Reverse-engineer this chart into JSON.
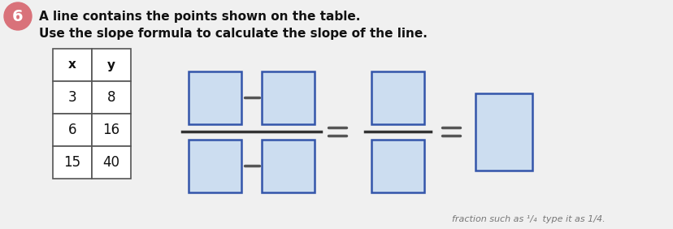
{
  "title_line1": "A line contains the points shown on the table.",
  "title_line2": "Use the slope formula to calculate the slope of the line.",
  "table_headers": [
    "x",
    "y"
  ],
  "table_rows": [
    [
      3,
      8
    ],
    [
      6,
      16
    ],
    [
      15,
      40
    ]
  ],
  "circle_number": "6",
  "circle_color": "#d9727a",
  "circle_text_color": "#ffffff",
  "table_border_color": "#555555",
  "box_fill_color": "#ccddf0",
  "box_border_color": "#3355aa",
  "background_color": "#f0f0f0",
  "text_color": "#111111",
  "minus_color": "#555555",
  "equals_color": "#555555",
  "bottom_text": "fraction such as",
  "fraction_hint": "type it as 1/4."
}
